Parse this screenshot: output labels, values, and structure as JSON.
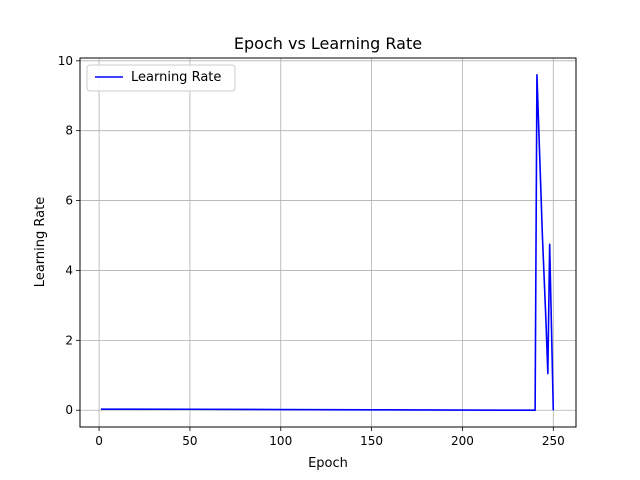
{
  "chart_data": {
    "type": "line",
    "title": "Epoch vs Learning Rate",
    "xlabel": "Epoch",
    "ylabel": "Learning Rate",
    "xlim": [
      -10.5,
      262.5
    ],
    "ylim": [
      -0.48,
      10.08
    ],
    "xticks": [
      0,
      50,
      100,
      150,
      200,
      250
    ],
    "yticks": [
      0,
      2,
      4,
      6,
      8,
      10
    ],
    "grid": true,
    "legend_position": "top-left",
    "series": [
      {
        "name": "Learning Rate",
        "color": "#0000ff",
        "x": [
          1,
          50,
          100,
          150,
          200,
          240,
          241,
          244,
          246,
          247,
          248,
          250
        ],
        "y": [
          0.03,
          0.028,
          0.02,
          0.012,
          0.005,
          0.0,
          9.6,
          5.0,
          2.5,
          1.05,
          4.75,
          0.0
        ]
      }
    ]
  }
}
